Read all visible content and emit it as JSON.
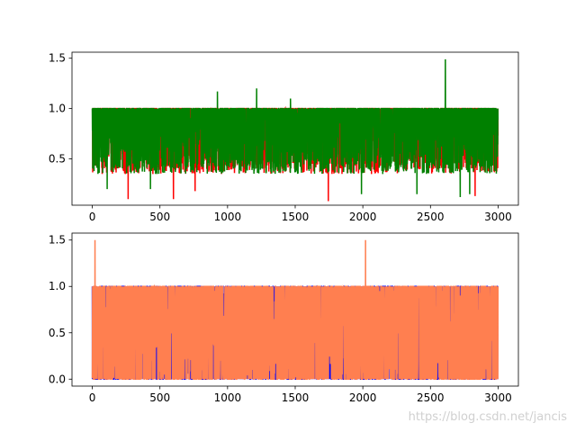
{
  "watermark": "https://blog.csdn.net/jancis",
  "colors": {
    "top_series_a": "#ff0000",
    "top_series_b": "#008000",
    "bottom_series_a": "#0000ff",
    "bottom_series_b": "#ff7f50"
  },
  "chart_data": [
    {
      "type": "line",
      "grid": false,
      "legend": "none",
      "xlim": [
        -150,
        3150
      ],
      "ylim": [
        0.04,
        1.56
      ],
      "xticks": [
        0,
        500,
        1000,
        1500,
        2000,
        2500,
        3000
      ],
      "xtick_labels": [
        "0",
        "500",
        "1000",
        "1500",
        "2000",
        "2500",
        "3000"
      ],
      "yticks": [
        0.5,
        1.0,
        1.5
      ],
      "ytick_labels": [
        "0.5",
        "1.0",
        "1.5"
      ],
      "series": [
        {
          "color": "#ff0000",
          "n_points": 3000,
          "range": [
            0.09,
            1.49
          ],
          "base_range": [
            0.35,
            1.0
          ],
          "dips": [
            [
              265,
              0.1
            ],
            [
              600,
              0.1
            ],
            [
              760,
              0.18
            ],
            [
              1745,
              0.08
            ],
            [
              2830,
              0.13
            ],
            [
              2560,
              0.65
            ]
          ]
        },
        {
          "color": "#008000",
          "n_points": 3000,
          "range": [
            0.12,
            1.49
          ],
          "base_range": [
            0.35,
            1.0
          ],
          "spikes": [
            [
              925,
              1.17
            ],
            [
              1215,
              1.2
            ],
            [
              1465,
              1.1
            ],
            [
              2610,
              1.49
            ]
          ],
          "dips": [
            [
              110,
              0.2
            ],
            [
              430,
              0.2
            ],
            [
              1990,
              0.15
            ],
            [
              2400,
              0.15
            ],
            [
              2720,
              0.12
            ],
            [
              2790,
              0.15
            ]
          ]
        }
      ]
    },
    {
      "type": "line",
      "grid": false,
      "legend": "none",
      "xlim": [
        -150,
        3150
      ],
      "ylim": [
        -0.075,
        1.575
      ],
      "xticks": [
        0,
        500,
        1000,
        1500,
        2000,
        2500,
        3000
      ],
      "xtick_labels": [
        "0",
        "500",
        "1000",
        "1500",
        "2000",
        "2500",
        "3000"
      ],
      "yticks": [
        0.0,
        0.5,
        1.0,
        1.5
      ],
      "ytick_labels": [
        "0.0",
        "0.5",
        "1.0",
        "1.5"
      ],
      "series": [
        {
          "color": "#0000ff",
          "n_points": 3000,
          "range": [
            0.0,
            1.0
          ]
        },
        {
          "color": "#ff7f50",
          "n_points": 3000,
          "range": [
            0.0,
            1.5
          ],
          "spikes": [
            [
              20,
              1.5
            ],
            [
              2020,
              1.5
            ]
          ]
        }
      ]
    }
  ]
}
